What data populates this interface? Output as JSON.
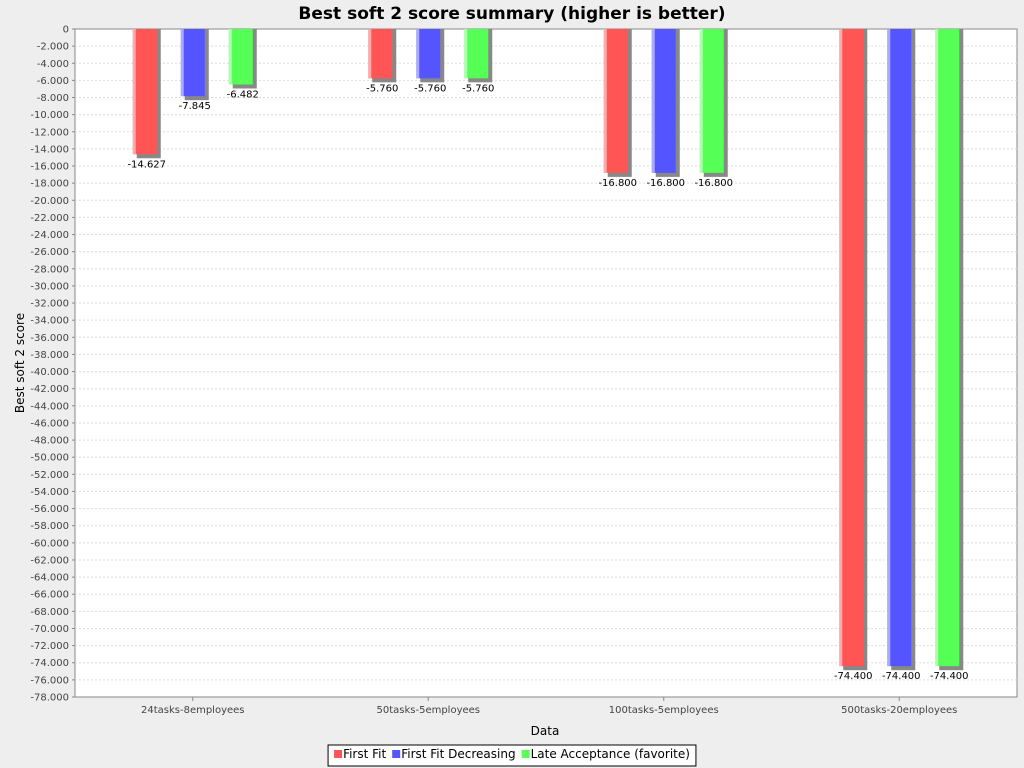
{
  "chart_data": {
    "type": "bar",
    "title": "Best soft 2 score summary (higher is better)",
    "xlabel": "Data",
    "ylabel": "Best soft 2 score",
    "ylim": [
      -78000,
      0
    ],
    "ytick_step": 2000,
    "grid": true,
    "legend_position": "bottom",
    "categories": [
      "24tasks-8employees",
      "50tasks-5employees",
      "100tasks-5employees",
      "500tasks-20employees"
    ],
    "series": [
      {
        "name": "First Fit",
        "color": "#ff5555",
        "values": [
          -14627,
          -5760,
          -16800,
          -74400
        ],
        "labels": [
          "-14.627",
          "-5.760",
          "-16.800",
          "-74.400"
        ]
      },
      {
        "name": "First Fit Decreasing",
        "color": "#5555ff",
        "values": [
          -7845,
          -5760,
          -16800,
          -74400
        ],
        "labels": [
          "-7.845",
          "-5.760",
          "-16.800",
          "-74.400"
        ]
      },
      {
        "name": "Late Acceptance (favorite)",
        "color": "#55ff55",
        "values": [
          -6482,
          -5760,
          -16800,
          -74400
        ],
        "labels": [
          "-6.482",
          "-5.760",
          "-16.800",
          "-74.400"
        ]
      }
    ]
  }
}
